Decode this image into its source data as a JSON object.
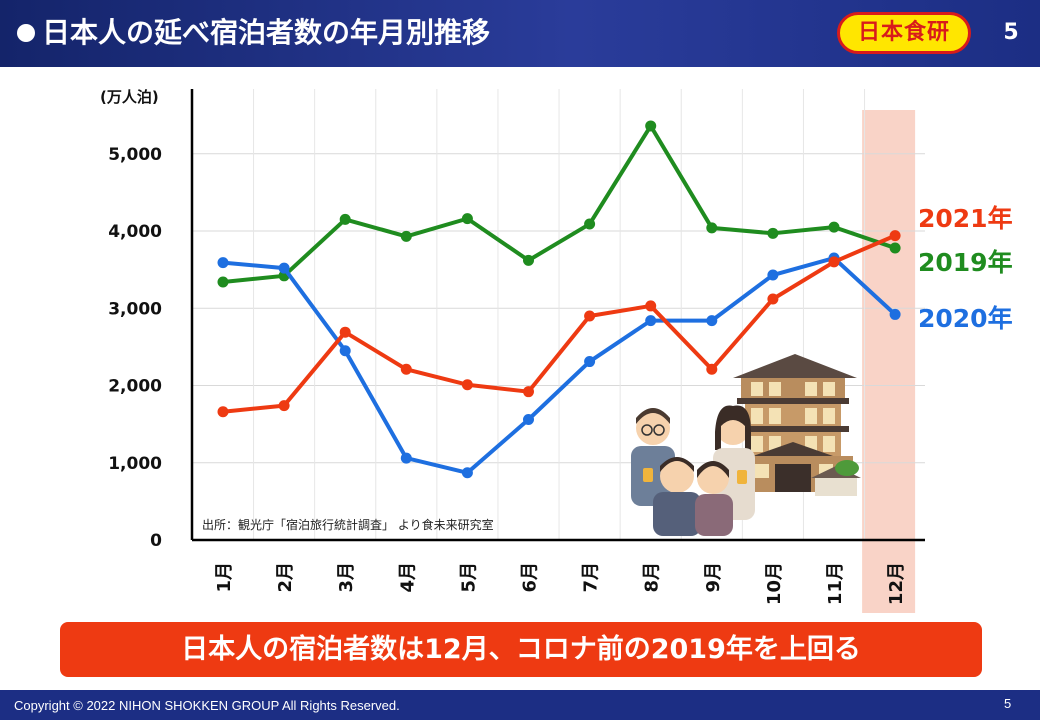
{
  "header": {
    "title": "日本人の延べ宿泊者数の年月別推移",
    "logo_text": "日本食研",
    "page_number": "5"
  },
  "chart_data": {
    "type": "line",
    "unit_label": "(万人泊)",
    "categories": [
      "1月",
      "2月",
      "3月",
      "4月",
      "5月",
      "6月",
      "7月",
      "8月",
      "9月",
      "10月",
      "11月",
      "12月"
    ],
    "ylim": [
      0,
      6000
    ],
    "yticks": [
      0,
      1000,
      2000,
      3000,
      4000,
      5000
    ],
    "ytick_labels": [
      "0",
      "1,000",
      "2,000",
      "3,000",
      "4,000",
      "5,000"
    ],
    "grid": true,
    "highlight_category": "12月",
    "source_note": "出所：観光庁「宿泊旅行統計調査」 より食未来研究室",
    "series": [
      {
        "name": "2019年",
        "color": "#1f8c1f",
        "values": [
          3340,
          3420,
          4150,
          3930,
          4160,
          3620,
          4090,
          5360,
          4040,
          3970,
          4050,
          3780
        ]
      },
      {
        "name": "2020年",
        "color": "#1e6fe0",
        "values": [
          3590,
          3520,
          2450,
          1060,
          870,
          1560,
          2310,
          2840,
          2840,
          3430,
          3650,
          2920
        ]
      },
      {
        "name": "2021年",
        "color": "#ee3a12",
        "values": [
          1660,
          1740,
          2690,
          2210,
          2010,
          1920,
          2900,
          3030,
          2210,
          3120,
          3600,
          3940
        ]
      }
    ]
  },
  "conclusion": "日本人の宿泊者数は12月、コロナ前の2019年を上回る",
  "footer": {
    "copyright": "Copyright © 2022 NIHON SHOKKEN GROUP All Rights Reserved.",
    "page_number": "5"
  }
}
